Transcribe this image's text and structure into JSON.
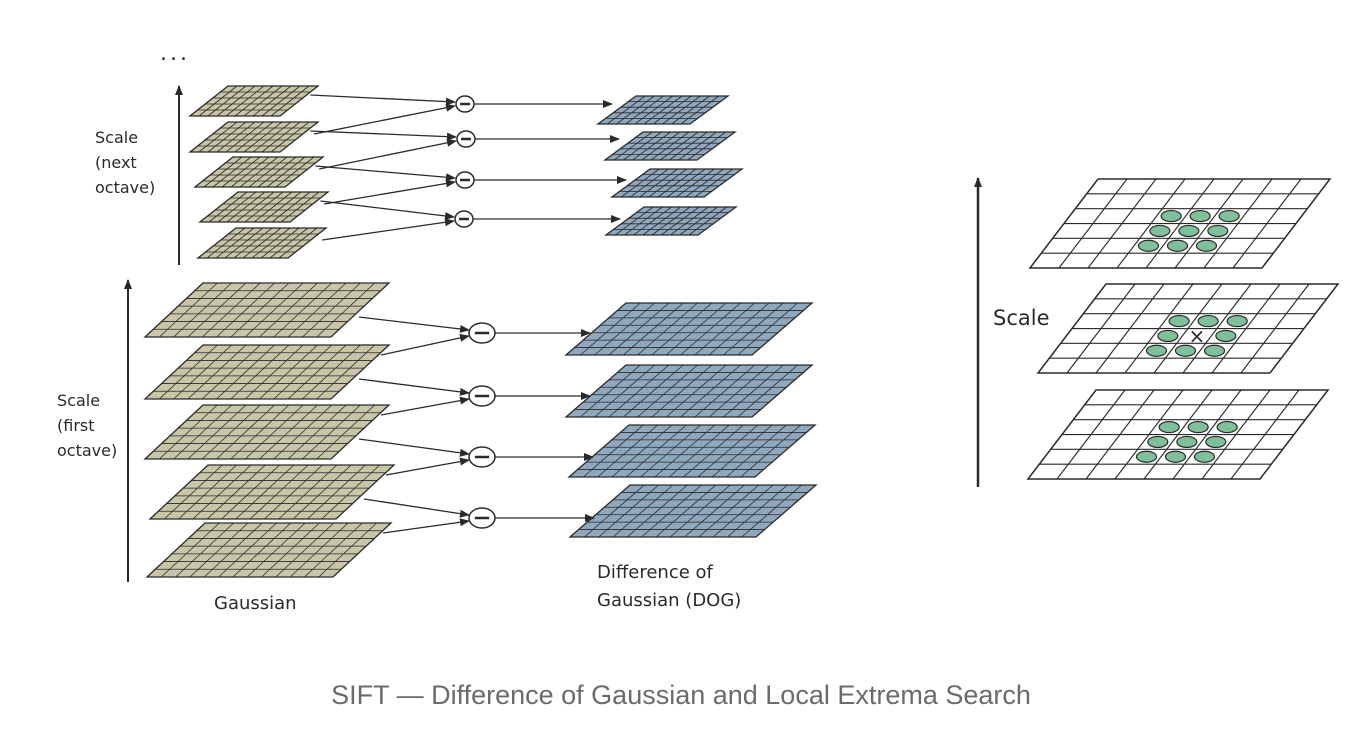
{
  "left_panel": {
    "ellipsis": "...",
    "next_octave_label": [
      "Scale",
      "(next",
      "octave)"
    ],
    "first_octave_label": [
      "Scale",
      "(first",
      "octave)"
    ],
    "gaussian_label": "Gaussian",
    "dog_label": [
      "Difference of",
      "Gaussian (DOG)"
    ],
    "minus_symbol": "−",
    "next_octave": {
      "gaussian_layers": 5,
      "dog_layers": 4
    },
    "first_octave": {
      "gaussian_layers": 5,
      "dog_layers": 4
    }
  },
  "right_panel": {
    "scale_label": "Scale",
    "layers": 3,
    "sample_mark": "×"
  },
  "caption": "SIFT — Difference of Gaussian and Local Extrema Search",
  "colors": {
    "gaussian_fill": "#c8c6a6",
    "dog_fill": "#8fa8be",
    "neighbor_fill": "#7fbf9a",
    "line": "#2a2a2a"
  }
}
